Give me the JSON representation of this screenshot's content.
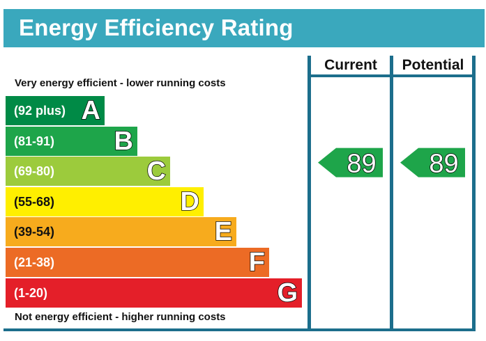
{
  "header": {
    "title": "Energy Efficiency Rating"
  },
  "columns": {
    "current": "Current",
    "potential": "Potential"
  },
  "captions": {
    "top": "Very energy efficient - lower running costs",
    "bottom": "Not energy efficient - higher running costs"
  },
  "chart_data": {
    "type": "bar",
    "title": "Energy Efficiency Rating",
    "categories": [
      "A",
      "B",
      "C",
      "D",
      "E",
      "F",
      "G"
    ],
    "ranges": [
      "(92 plus)",
      "(81-91)",
      "(69-80)",
      "(55-68)",
      "(39-54)",
      "(21-38)",
      "(1-20)"
    ],
    "colors": [
      "#008a46",
      "#1ea54a",
      "#9ccb3c",
      "#ffef00",
      "#f7ab1d",
      "#ec6b25",
      "#e41f29"
    ],
    "current": {
      "value": 89,
      "band": "B"
    },
    "potential": {
      "value": 89,
      "band": "B"
    }
  }
}
